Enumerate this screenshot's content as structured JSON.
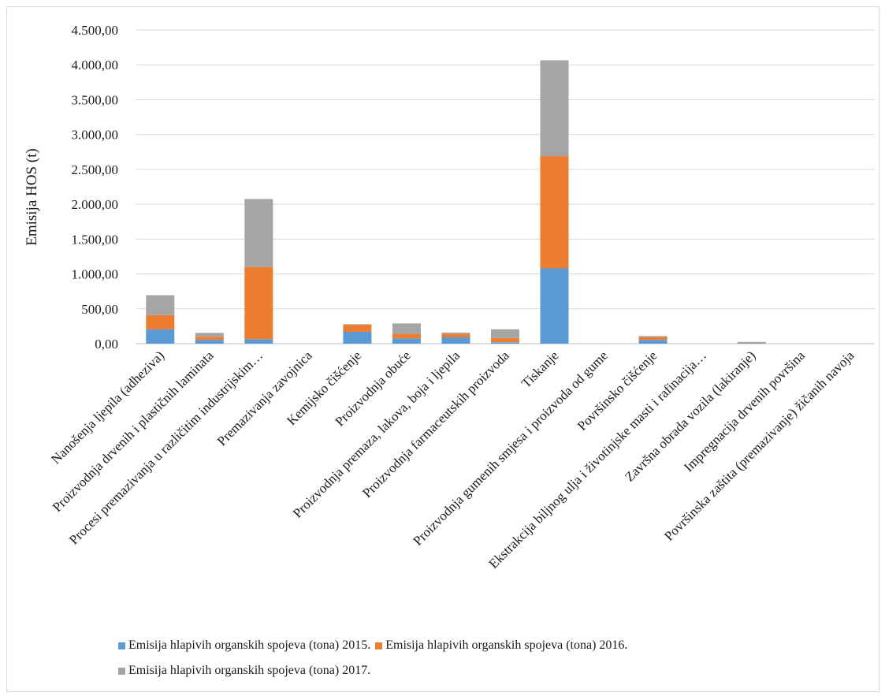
{
  "chart_data": {
    "type": "bar",
    "stacked": true,
    "ylabel": "Emisija HOS (t)",
    "ylim": [
      0,
      4500
    ],
    "yticks": [
      0,
      500,
      1000,
      1500,
      2000,
      2500,
      3000,
      3500,
      4000,
      4500
    ],
    "ytick_labels": [
      "0,00",
      "500,00",
      "1.000,00",
      "1.500,00",
      "2.000,00",
      "2.500,00",
      "3.000,00",
      "3.500,00",
      "4.000,00",
      "4.500,00"
    ],
    "grid": true,
    "legend_position": "bottom",
    "categories": [
      "Nanošenja ljepila (adheziva)",
      "Proizvodnja drvenih i plastičnih laminata",
      "Procesi premazivanja u različitim industrijskim…",
      "Premazivanja zavojnica",
      "Kemijsko čišćenje",
      "Proizvodnja obuće",
      "Proizvodnja premaza, lakova, boja i ljepila",
      "Proizvodnja farmaceutskih proizvoda",
      "Tiskanje",
      "Proizvodnja gumenih smjesa i proizvoda od gume",
      "Površinsko čišćenje",
      "Ekstrakcija biljnog ulja i životinjske masti i rafinacija…",
      "Završna obrada vozila (lakiranje)",
      "Impregnacija drvenih površina",
      "Površinska zaštita (premazivanje) žičanih navoja"
    ],
    "series": [
      {
        "name": "Emisija hlapivih organskih spojeva (tona) 2015.",
        "color": "#5b9bd5",
        "values": [
          205,
          55,
          65,
          0,
          170,
          75,
          90,
          20,
          1080,
          0,
          55,
          0,
          5,
          0,
          0
        ]
      },
      {
        "name": "Emisija hlapivih organskih spojeva (tona) 2016.",
        "color": "#ed7d31",
        "values": [
          205,
          45,
          1035,
          0,
          100,
          65,
          50,
          60,
          1610,
          0,
          40,
          0,
          5,
          0,
          0
        ]
      },
      {
        "name": "Emisija hlapivih organskih spojeva (tona) 2017.",
        "color": "#a5a5a5",
        "values": [
          285,
          55,
          975,
          0,
          10,
          150,
          20,
          125,
          1375,
          0,
          15,
          0,
          15,
          0,
          0
        ]
      }
    ]
  }
}
